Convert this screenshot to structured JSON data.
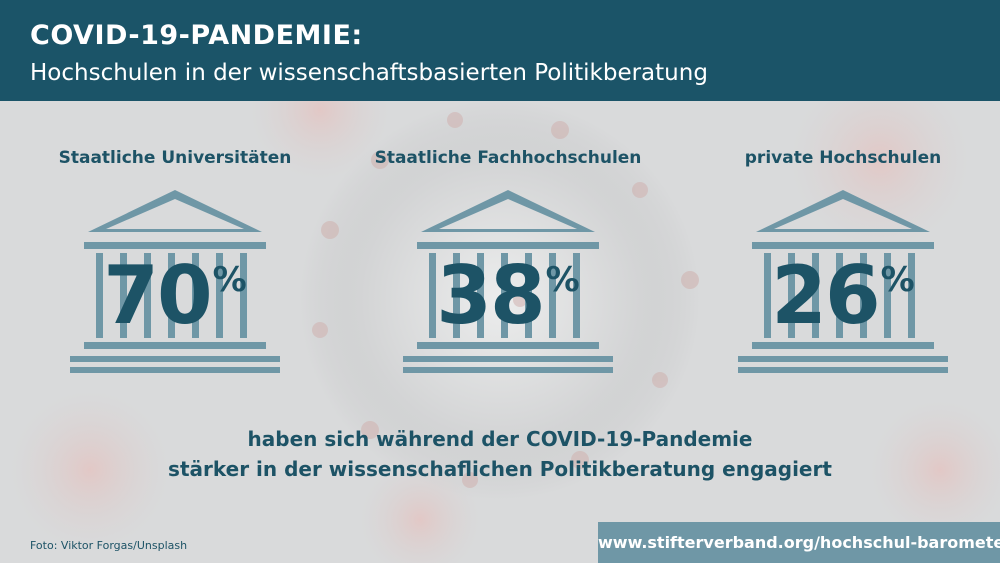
{
  "header": {
    "title": "COVID-19-PANDEMIE:",
    "subtitle": "Hochschulen in der wissenschaftsbasierten Politikberatung"
  },
  "stats": [
    {
      "label": "Staatliche Universitäten",
      "value": "70",
      "unit": "%"
    },
    {
      "label": "Staatliche Fachhochschulen",
      "value": "38",
      "unit": "%"
    },
    {
      "label": "private Hochschulen",
      "value": "26",
      "unit": "%"
    }
  ],
  "conclusion": {
    "line1": "haben sich während der COVID-19-Pandemie",
    "line2": "stärker in der wissenschaflichen Politikberatung engagiert"
  },
  "footer": {
    "credit": "Foto: Viktor Forgas/Unsplash",
    "url": "www.stifterverband.org/hochschul-barometer"
  },
  "colors": {
    "header_bg": "#1b5468",
    "text_dark": "#1d5366",
    "building": "#6f97a6",
    "footer_bg": "#6f97a6",
    "background": "#d9dadb"
  },
  "icons": [
    "building-icon"
  ]
}
